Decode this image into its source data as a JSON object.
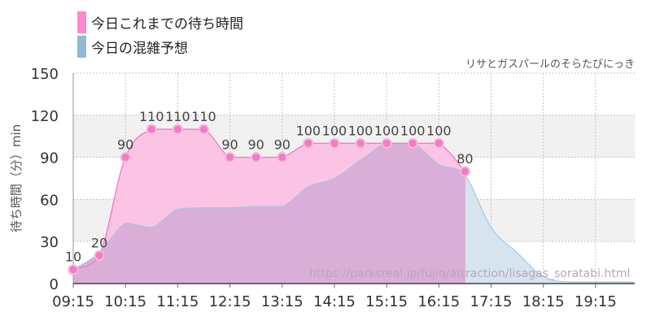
{
  "legend": [
    {
      "label": "今日これまでの待ち時間",
      "color": "#ff88cc"
    },
    {
      "label": "今日の混雑予想",
      "color": "#94b8d4"
    }
  ],
  "attribution": "リサとガスパールのそらたびにっき",
  "watermark": "https://parksreal.jp/fujiq/attraction/lisagas_soratabi.html",
  "chart_data": {
    "type": "area",
    "ylabel": "待ち時間（分）min",
    "ylim": [
      0,
      150
    ],
    "yticks": [
      0,
      30,
      60,
      90,
      120,
      150
    ],
    "xlim": [
      "09:15",
      "20:00"
    ],
    "xticks": [
      "09:15",
      "10:15",
      "11:15",
      "12:15",
      "13:15",
      "14:15",
      "15:15",
      "16:15",
      "17:15",
      "18:15",
      "19:15"
    ],
    "grid": true,
    "legend_position": "top-left",
    "series": [
      {
        "name": "今日これまでの待ち時間",
        "color": "#ff88cc",
        "labeled": true,
        "points": [
          [
            "09:15",
            10
          ],
          [
            "09:45",
            20
          ],
          [
            "10:15",
            90
          ],
          [
            "10:45",
            110
          ],
          [
            "11:15",
            110
          ],
          [
            "11:45",
            110
          ],
          [
            "12:15",
            90
          ],
          [
            "12:45",
            90
          ],
          [
            "13:15",
            90
          ],
          [
            "13:45",
            100
          ],
          [
            "14:15",
            100
          ],
          [
            "14:45",
            100
          ],
          [
            "15:15",
            100
          ],
          [
            "15:45",
            100
          ],
          [
            "16:15",
            100
          ],
          [
            "16:45",
            80
          ]
        ]
      },
      {
        "name": "今日の混雑予想",
        "color": "#94b8d4",
        "labeled": false,
        "points": [
          [
            "09:15",
            10
          ],
          [
            "09:45",
            22
          ],
          [
            "10:15",
            43
          ],
          [
            "10:45",
            40
          ],
          [
            "11:15",
            53
          ],
          [
            "11:45",
            54
          ],
          [
            "12:15",
            54
          ],
          [
            "12:45",
            55
          ],
          [
            "13:15",
            55
          ],
          [
            "13:45",
            69
          ],
          [
            "14:15",
            75
          ],
          [
            "14:45",
            88
          ],
          [
            "15:15",
            100
          ],
          [
            "15:45",
            100
          ],
          [
            "16:15",
            85
          ],
          [
            "16:45",
            77
          ],
          [
            "17:15",
            40
          ],
          [
            "17:45",
            22
          ],
          [
            "18:15",
            5
          ],
          [
            "18:45",
            1
          ],
          [
            "19:15",
            1
          ],
          [
            "20:00",
            1
          ]
        ]
      }
    ]
  }
}
